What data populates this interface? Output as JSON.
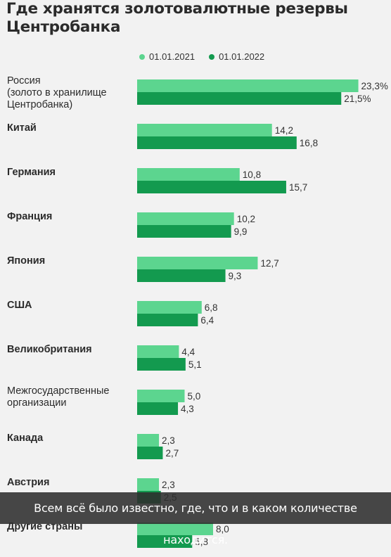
{
  "title": "Где хранятся золотовалютные резервы Центробанка",
  "caption": "Всем всё было известно, где, что и в каком количестве находится.",
  "colors": {
    "series2021": "#5cd58f",
    "series2022": "#139a4f"
  },
  "chart_data": {
    "type": "bar",
    "orientation": "horizontal",
    "title": "Где хранятся золотовалютные резервы Центробанка",
    "legend_position": "top",
    "grid": false,
    "categories": [
      [
        "Россия",
        "(золото в хранилище",
        "Центробанка)"
      ],
      [
        "Китай"
      ],
      [
        "Германия"
      ],
      [
        "Франция"
      ],
      [
        "Япония"
      ],
      [
        "США"
      ],
      [
        "Великобритания"
      ],
      [
        "Межгосударственные",
        "организации"
      ],
      [
        "Канада"
      ],
      [
        "Австрия"
      ],
      [
        "Другие страны"
      ]
    ],
    "series": [
      {
        "name": "01.01.2021",
        "values": [
          23.3,
          14.2,
          10.8,
          10.2,
          12.7,
          6.8,
          4.4,
          5.0,
          2.3,
          2.3,
          8.0
        ],
        "labels": [
          "23,3%",
          "14,2",
          "10,8",
          "10,2",
          "12,7",
          "6,8",
          "4,4",
          "5,0",
          "2,3",
          "2,3",
          "8,0"
        ]
      },
      {
        "name": "01.01.2022",
        "values": [
          21.5,
          16.8,
          15.7,
          9.9,
          9.3,
          6.4,
          5.1,
          4.3,
          2.7,
          2.5,
          5.8
        ],
        "labels": [
          "21,5%",
          "16,8",
          "15,7",
          "9,9",
          "9,3",
          "6,4",
          "5,1",
          "4,3",
          "2,7",
          "2,5",
          "5,8"
        ]
      }
    ]
  }
}
